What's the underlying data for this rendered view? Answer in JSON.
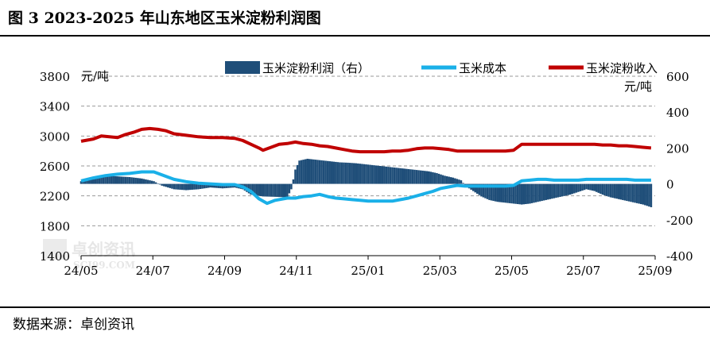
{
  "header": {
    "title": "图 3  2023-2025 年山东地区玉米淀粉利润图"
  },
  "footer": {
    "source": "数据来源：卓创资讯"
  },
  "watermark": {
    "text_cn": "卓创资讯",
    "text_en": "SCI99.COM"
  },
  "chart_data": {
    "type": "line",
    "left_unit": "元/吨",
    "right_unit": "元/吨",
    "y_left": {
      "min": 1400,
      "max": 3800,
      "ticks": [
        3800,
        3400,
        3000,
        2600,
        2200,
        1800,
        1400
      ]
    },
    "y_right": {
      "min": -400,
      "max": 600,
      "ticks": [
        600,
        400,
        200,
        0,
        -200,
        -400
      ]
    },
    "x_ticks": [
      "24/05",
      "24/07",
      "24/09",
      "24/11",
      "25/01",
      "25/03",
      "25/05",
      "25/07",
      "25/09"
    ],
    "grid": "horizontal-dashed",
    "legend_position": "top",
    "series": [
      {
        "name": "玉米淀粉利润（右）",
        "type": "bar",
        "axis": "right",
        "color": "#1f4e79",
        "points": [
          [
            0,
            15
          ],
          [
            3,
            35
          ],
          [
            6,
            45
          ],
          [
            9,
            42
          ],
          [
            12,
            38
          ],
          [
            15,
            30
          ],
          [
            18,
            15
          ],
          [
            20,
            -10
          ],
          [
            23,
            -30
          ],
          [
            26,
            -35
          ],
          [
            29,
            -30
          ],
          [
            32,
            -20
          ],
          [
            35,
            -25
          ],
          [
            38,
            -20
          ],
          [
            40,
            -30
          ],
          [
            42,
            -60
          ],
          [
            45,
            -70
          ],
          [
            48,
            -72
          ],
          [
            51,
            -75
          ],
          [
            52,
            -30
          ],
          [
            53,
            80
          ],
          [
            54,
            130
          ],
          [
            56,
            140
          ],
          [
            58,
            135
          ],
          [
            60,
            130
          ],
          [
            62,
            125
          ],
          [
            64,
            120
          ],
          [
            66,
            118
          ],
          [
            68,
            115
          ],
          [
            70,
            110
          ],
          [
            72,
            105
          ],
          [
            74,
            100
          ],
          [
            76,
            95
          ],
          [
            78,
            90
          ],
          [
            80,
            85
          ],
          [
            82,
            80
          ],
          [
            84,
            75
          ],
          [
            86,
            70
          ],
          [
            88,
            60
          ],
          [
            90,
            45
          ],
          [
            92,
            35
          ],
          [
            94,
            20
          ],
          [
            95,
            -10
          ],
          [
            97,
            -40
          ],
          [
            99,
            -70
          ],
          [
            101,
            -90
          ],
          [
            103,
            -100
          ],
          [
            105,
            -105
          ],
          [
            107,
            -110
          ],
          [
            109,
            -115
          ],
          [
            111,
            -110
          ],
          [
            113,
            -100
          ],
          [
            115,
            -90
          ],
          [
            117,
            -80
          ],
          [
            119,
            -70
          ],
          [
            121,
            -60
          ],
          [
            123,
            -45
          ],
          [
            125,
            -30
          ],
          [
            127,
            -40
          ],
          [
            129,
            -60
          ],
          [
            131,
            -75
          ],
          [
            133,
            -85
          ],
          [
            135,
            -95
          ],
          [
            137,
            -105
          ],
          [
            139,
            -115
          ],
          [
            141,
            -130
          ]
        ]
      },
      {
        "name": "玉米成本",
        "type": "line",
        "axis": "left",
        "color": "#1ab0e8",
        "points": [
          [
            0,
            2400
          ],
          [
            3,
            2440
          ],
          [
            6,
            2470
          ],
          [
            9,
            2490
          ],
          [
            12,
            2500
          ],
          [
            15,
            2520
          ],
          [
            18,
            2520
          ],
          [
            20,
            2480
          ],
          [
            23,
            2420
          ],
          [
            26,
            2390
          ],
          [
            29,
            2370
          ],
          [
            32,
            2360
          ],
          [
            35,
            2350
          ],
          [
            38,
            2350
          ],
          [
            40,
            2320
          ],
          [
            42,
            2260
          ],
          [
            44,
            2160
          ],
          [
            46,
            2100
          ],
          [
            48,
            2140
          ],
          [
            51,
            2170
          ],
          [
            53,
            2170
          ],
          [
            55,
            2190
          ],
          [
            57,
            2200
          ],
          [
            59,
            2220
          ],
          [
            61,
            2190
          ],
          [
            63,
            2170
          ],
          [
            65,
            2160
          ],
          [
            67,
            2150
          ],
          [
            69,
            2140
          ],
          [
            71,
            2130
          ],
          [
            73,
            2130
          ],
          [
            75,
            2130
          ],
          [
            77,
            2130
          ],
          [
            79,
            2150
          ],
          [
            81,
            2170
          ],
          [
            83,
            2200
          ],
          [
            85,
            2230
          ],
          [
            87,
            2260
          ],
          [
            89,
            2300
          ],
          [
            91,
            2320
          ],
          [
            93,
            2340
          ],
          [
            95,
            2330
          ],
          [
            97,
            2330
          ],
          [
            99,
            2330
          ],
          [
            101,
            2330
          ],
          [
            103,
            2330
          ],
          [
            105,
            2330
          ],
          [
            107,
            2340
          ],
          [
            109,
            2400
          ],
          [
            111,
            2410
          ],
          [
            113,
            2420
          ],
          [
            115,
            2420
          ],
          [
            117,
            2410
          ],
          [
            119,
            2410
          ],
          [
            121,
            2410
          ],
          [
            123,
            2410
          ],
          [
            125,
            2420
          ],
          [
            127,
            2420
          ],
          [
            129,
            2420
          ],
          [
            131,
            2420
          ],
          [
            133,
            2420
          ],
          [
            135,
            2420
          ],
          [
            137,
            2410
          ],
          [
            139,
            2410
          ],
          [
            141,
            2410
          ]
        ]
      },
      {
        "name": "玉米淀粉收入",
        "type": "line",
        "axis": "left",
        "color": "#c00000",
        "points": [
          [
            0,
            2930
          ],
          [
            3,
            2960
          ],
          [
            5,
            3000
          ],
          [
            7,
            2990
          ],
          [
            9,
            2980
          ],
          [
            11,
            3020
          ],
          [
            13,
            3050
          ],
          [
            15,
            3090
          ],
          [
            17,
            3100
          ],
          [
            19,
            3090
          ],
          [
            21,
            3070
          ],
          [
            23,
            3030
          ],
          [
            26,
            3010
          ],
          [
            29,
            2990
          ],
          [
            32,
            2980
          ],
          [
            35,
            2980
          ],
          [
            38,
            2970
          ],
          [
            40,
            2940
          ],
          [
            42,
            2890
          ],
          [
            44,
            2840
          ],
          [
            45,
            2810
          ],
          [
            47,
            2850
          ],
          [
            49,
            2890
          ],
          [
            51,
            2900
          ],
          [
            53,
            2920
          ],
          [
            55,
            2900
          ],
          [
            57,
            2890
          ],
          [
            59,
            2870
          ],
          [
            61,
            2860
          ],
          [
            63,
            2840
          ],
          [
            65,
            2820
          ],
          [
            67,
            2800
          ],
          [
            69,
            2790
          ],
          [
            71,
            2790
          ],
          [
            73,
            2790
          ],
          [
            75,
            2790
          ],
          [
            77,
            2800
          ],
          [
            79,
            2800
          ],
          [
            81,
            2810
          ],
          [
            83,
            2830
          ],
          [
            85,
            2840
          ],
          [
            87,
            2840
          ],
          [
            89,
            2830
          ],
          [
            91,
            2820
          ],
          [
            93,
            2800
          ],
          [
            95,
            2800
          ],
          [
            97,
            2800
          ],
          [
            99,
            2800
          ],
          [
            101,
            2800
          ],
          [
            103,
            2800
          ],
          [
            105,
            2800
          ],
          [
            107,
            2810
          ],
          [
            109,
            2890
          ],
          [
            111,
            2890
          ],
          [
            113,
            2890
          ],
          [
            115,
            2890
          ],
          [
            117,
            2890
          ],
          [
            119,
            2890
          ],
          [
            121,
            2890
          ],
          [
            123,
            2890
          ],
          [
            125,
            2890
          ],
          [
            127,
            2890
          ],
          [
            129,
            2880
          ],
          [
            131,
            2880
          ],
          [
            133,
            2870
          ],
          [
            135,
            2870
          ],
          [
            137,
            2860
          ],
          [
            139,
            2850
          ],
          [
            141,
            2840
          ]
        ]
      }
    ]
  }
}
